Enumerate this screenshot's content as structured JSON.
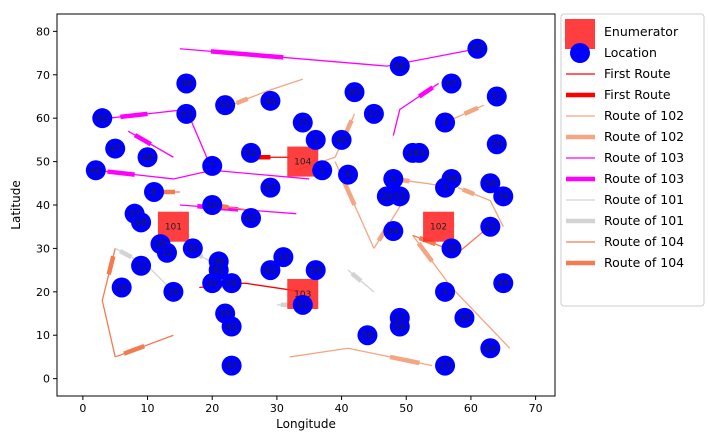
{
  "chart_data": {
    "type": "scatter",
    "title": "",
    "xlabel": "Longitude",
    "ylabel": "Latitude",
    "xlim": [
      -4,
      73
    ],
    "ylim": [
      -4,
      84
    ],
    "xticks": [
      0,
      10,
      20,
      30,
      40,
      50,
      60,
      70
    ],
    "yticks": [
      0,
      10,
      20,
      30,
      40,
      50,
      60,
      70,
      80
    ],
    "grid": false,
    "legend_position": "outside-right",
    "colors": {
      "enumerator": "#ff2a2a",
      "location": "#0000ff",
      "route_102": "#f4a582",
      "route_101": "#d3d3d3",
      "route_103": "#ff00ff",
      "route_104": "#f47b50",
      "first_route": "#ff0000"
    },
    "legend": [
      {
        "label": "Enumerator",
        "kind": "square",
        "color": "#ff2a2a"
      },
      {
        "label": "Location",
        "kind": "circle",
        "color": "#0000ff"
      },
      {
        "label": "First Route",
        "kind": "thin",
        "color": "#ff0000"
      },
      {
        "label": "First Route",
        "kind": "thick",
        "color": "#ff0000"
      },
      {
        "label": "Route of 102",
        "kind": "thin",
        "color": "#f4a582"
      },
      {
        "label": "Route of 102",
        "kind": "thick",
        "color": "#f4a582"
      },
      {
        "label": "Route of 103",
        "kind": "thin",
        "color": "#ff00ff"
      },
      {
        "label": "Route of 103",
        "kind": "thick",
        "color": "#ff00ff"
      },
      {
        "label": "Route of 101",
        "kind": "thin",
        "color": "#d3d3d3"
      },
      {
        "label": "Route of 101",
        "kind": "thick",
        "color": "#d3d3d3"
      },
      {
        "label": "Route of 104",
        "kind": "thin",
        "color": "#f47b50"
      },
      {
        "label": "Route of 104",
        "kind": "thick",
        "color": "#f47b50"
      }
    ],
    "enumerators": [
      {
        "id": "101",
        "x": 14,
        "y": 35
      },
      {
        "id": "102",
        "x": 55,
        "y": 35
      },
      {
        "id": "103",
        "x": 34,
        "y": 19.5
      },
      {
        "id": "104",
        "x": 34,
        "y": 50
      }
    ],
    "locations": [
      {
        "id": "1",
        "x": 37,
        "y": 48
      },
      {
        "id": "2",
        "x": 36,
        "y": 55
      },
      {
        "id": "3",
        "x": 56,
        "y": 44
      },
      {
        "id": "4",
        "x": 56,
        "y": 20
      },
      {
        "id": "5",
        "x": 48,
        "y": 46
      },
      {
        "id": "6",
        "x": 41,
        "y": 47
      },
      {
        "id": "7",
        "x": 20,
        "y": 49
      },
      {
        "id": "8",
        "x": 11,
        "y": 43
      },
      {
        "id": "9",
        "x": 56,
        "y": 59
      },
      {
        "id": "10",
        "x": 20,
        "y": 40
      },
      {
        "id": "11",
        "x": 9,
        "y": 26
      },
      {
        "id": "12",
        "x": 13,
        "y": 29
      },
      {
        "id": "13",
        "x": 31,
        "y": 28
      },
      {
        "id": "15",
        "x": 34,
        "y": 59
      },
      {
        "id": "16",
        "x": 6,
        "y": 21
      },
      {
        "id": "17",
        "x": 49,
        "y": 14
      },
      {
        "id": "18",
        "x": 14,
        "y": 20
      },
      {
        "id": "19",
        "x": 22,
        "y": 15
      },
      {
        "id": "20",
        "x": 47,
        "y": 42
      },
      {
        "id": "21",
        "x": 51,
        "y": 52
      },
      {
        "id": "22",
        "x": 45,
        "y": 61
      },
      {
        "id": "23",
        "x": 56,
        "y": 3
      },
      {
        "id": "24",
        "x": 23,
        "y": 22
      },
      {
        "id": "25",
        "x": 63,
        "y": 35
      },
      {
        "id": "26",
        "x": 64,
        "y": 54
      },
      {
        "id": "28",
        "x": 12,
        "y": 31
      },
      {
        "id": "29",
        "x": 48,
        "y": 34
      },
      {
        "id": "30",
        "x": 17,
        "y": 30
      },
      {
        "id": "31",
        "x": 64,
        "y": 65
      },
      {
        "id": "32",
        "x": 20,
        "y": 22
      },
      {
        "id": "33",
        "x": 52,
        "y": 52
      },
      {
        "id": "34",
        "x": 65,
        "y": 42
      },
      {
        "id": "35",
        "x": 57,
        "y": 30
      },
      {
        "id": "36",
        "x": 21,
        "y": 27
      },
      {
        "id": "37",
        "x": 8,
        "y": 38
      },
      {
        "id": "38",
        "x": 16,
        "y": 68
      },
      {
        "id": "39",
        "x": 59,
        "y": 14
      },
      {
        "id": "40",
        "x": 40,
        "y": 55
      },
      {
        "id": "41",
        "x": 26,
        "y": 37
      },
      {
        "id": "42",
        "x": 23,
        "y": 12
      },
      {
        "id": "43",
        "x": 23,
        "y": 3
      },
      {
        "id": "44",
        "x": 29,
        "y": 64
      },
      {
        "id": "46",
        "x": 2,
        "y": 48
      },
      {
        "id": "47",
        "x": 5,
        "y": 53
      },
      {
        "id": "48",
        "x": 10,
        "y": 51
      },
      {
        "id": "49",
        "x": 65,
        "y": 22
      },
      {
        "id": "50",
        "x": 44,
        "y": 10
      },
      {
        "id": "51",
        "x": 34,
        "y": 17
      },
      {
        "id": "52",
        "x": 26,
        "y": 52
      },
      {
        "id": "53",
        "x": 49,
        "y": 42
      },
      {
        "id": "54",
        "x": 63,
        "y": 45
      },
      {
        "id": "55",
        "x": 22,
        "y": 63
      },
      {
        "id": "56",
        "x": 49,
        "y": 12
      },
      {
        "id": "57",
        "x": 29,
        "y": 44
      },
      {
        "id": "58",
        "x": 36,
        "y": 25
      },
      {
        "id": "59",
        "x": 57,
        "y": 46
      },
      {
        "id": "60",
        "x": 3,
        "y": 60
      },
      {
        "id": "61",
        "x": 21,
        "y": 25
      },
      {
        "id": "62",
        "x": 29,
        "y": 25
      },
      {
        "id": "63",
        "x": 16,
        "y": 61
      },
      {
        "id": "64",
        "x": 63,
        "y": 7
      },
      {
        "id": "65",
        "x": 61,
        "y": 76
      },
      {
        "id": "66",
        "x": 49,
        "y": 72
      },
      {
        "id": "67",
        "x": 57,
        "y": 68
      },
      {
        "id": "68",
        "x": 9,
        "y": 36
      },
      {
        "id": "69",
        "x": 42,
        "y": 66
      }
    ],
    "routes": [
      {
        "name": "Route of 103",
        "points": [
          [
            15,
            76
          ],
          [
            47,
            72
          ],
          [
            61,
            76
          ]
        ]
      },
      {
        "name": "Route of 103",
        "points": [
          [
            55,
            68
          ],
          [
            49,
            62
          ],
          [
            48,
            56
          ]
        ]
      },
      {
        "name": "Route of 103",
        "points": [
          [
            2,
            48
          ],
          [
            14,
            46
          ],
          [
            20,
            48
          ],
          [
            35,
            46
          ]
        ]
      },
      {
        "name": "Route of 103",
        "points": [
          [
            4,
            60
          ],
          [
            16,
            62
          ],
          [
            20,
            48
          ]
        ]
      },
      {
        "name": "Route of 103",
        "points": [
          [
            7,
            57
          ],
          [
            14,
            51
          ]
        ]
      },
      {
        "name": "Route of 103",
        "points": [
          [
            15,
            40
          ],
          [
            33,
            38
          ]
        ]
      },
      {
        "name": "Route of 102",
        "points": [
          [
            23,
            63
          ],
          [
            28,
            66
          ],
          [
            34,
            69
          ]
        ]
      },
      {
        "name": "Route of 102",
        "points": [
          [
            42,
            61
          ],
          [
            39,
            51
          ],
          [
            33,
            48
          ]
        ]
      },
      {
        "name": "Route of 102",
        "points": [
          [
            48,
            46
          ],
          [
            53,
            45
          ],
          [
            57,
            44
          ]
        ]
      },
      {
        "name": "Route of 102",
        "points": [
          [
            62,
            63
          ],
          [
            56,
            59
          ]
        ]
      },
      {
        "name": "Route of 102",
        "points": [
          [
            39,
            50
          ],
          [
            45,
            30
          ]
        ]
      },
      {
        "name": "Route of 102",
        "points": [
          [
            58,
            44
          ],
          [
            63,
            41
          ],
          [
            65,
            35
          ]
        ]
      },
      {
        "name": "Route of 102",
        "points": [
          [
            45,
            30
          ],
          [
            50,
            42
          ]
        ]
      },
      {
        "name": "Route of 102",
        "points": [
          [
            51,
            33
          ],
          [
            57,
            21
          ],
          [
            66,
            7
          ]
        ]
      },
      {
        "name": "Route of 102",
        "points": [
          [
            54,
            3
          ],
          [
            41,
            7
          ],
          [
            32,
            5
          ]
        ]
      },
      {
        "name": "Route of 101",
        "points": [
          [
            5,
            30
          ],
          [
            10,
            26
          ],
          [
            14,
            20
          ]
        ]
      },
      {
        "name": "Route of 101",
        "points": [
          [
            16,
            30
          ],
          [
            21,
            26
          ]
        ]
      },
      {
        "name": "Route of 101",
        "points": [
          [
            30,
            17
          ],
          [
            34,
            17
          ]
        ]
      },
      {
        "name": "Route of 101",
        "points": [
          [
            41,
            25
          ],
          [
            45,
            20
          ]
        ]
      },
      {
        "name": "Route of 104",
        "points": [
          [
            15,
            43
          ],
          [
            10,
            43
          ]
        ]
      },
      {
        "name": "Route of 104",
        "points": [
          [
            5,
            30
          ],
          [
            3,
            18
          ],
          [
            5,
            5
          ]
        ]
      },
      {
        "name": "Route of 104",
        "points": [
          [
            5,
            5
          ],
          [
            14,
            10
          ]
        ]
      },
      {
        "name": "Route of 104",
        "points": [
          [
            20,
            40
          ],
          [
            25,
            39
          ]
        ]
      },
      {
        "name": "Route of 104",
        "points": [
          [
            51,
            33
          ],
          [
            58,
            29
          ],
          [
            62,
            34
          ]
        ]
      },
      {
        "name": "First Route",
        "points": [
          [
            18,
            21
          ],
          [
            25,
            22
          ],
          [
            34,
            20
          ]
        ]
      },
      {
        "name": "First Route",
        "points": [
          [
            26,
            51
          ],
          [
            32,
            51
          ]
        ]
      }
    ]
  }
}
